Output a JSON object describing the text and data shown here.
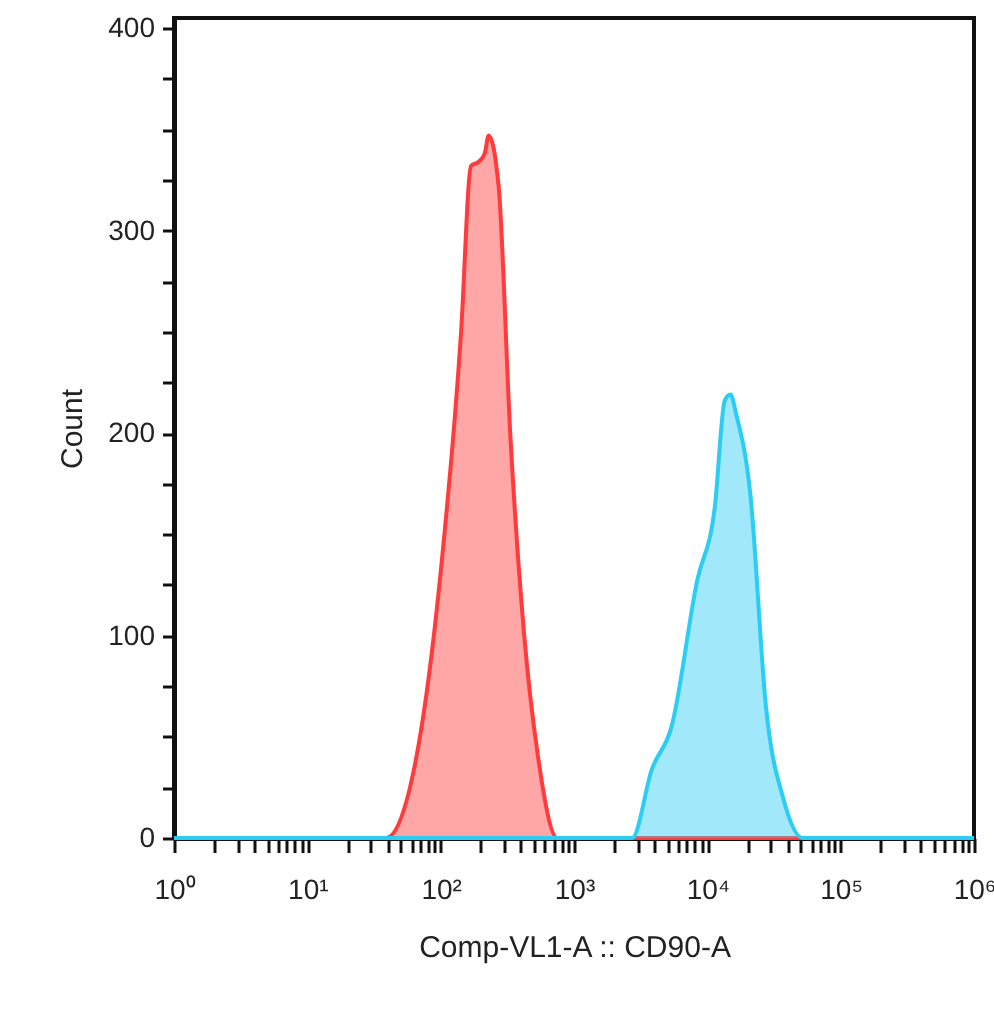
{
  "chart_data": {
    "type": "area",
    "xlabel": "Comp-VL1-A :: CD90-A",
    "ylabel": "Count",
    "log": "x",
    "xlim": [
      1,
      1000000
    ],
    "ylim": [
      0,
      405
    ],
    "xticks": [
      {
        "value": 1,
        "label": "10⁰"
      },
      {
        "value": 2,
        "label": null
      },
      {
        "value": 3,
        "label": null
      },
      {
        "value": 4,
        "label": null
      },
      {
        "value": 5,
        "label": null
      },
      {
        "value": 6,
        "label": null
      },
      {
        "value": 7,
        "label": null
      },
      {
        "value": 8,
        "label": null
      },
      {
        "value": 9,
        "label": null
      },
      {
        "value": 10,
        "label": "10¹"
      },
      {
        "value": 20,
        "label": null
      },
      {
        "value": 30,
        "label": null
      },
      {
        "value": 40,
        "label": null
      },
      {
        "value": 50,
        "label": null
      },
      {
        "value": 60,
        "label": null
      },
      {
        "value": 70,
        "label": null
      },
      {
        "value": 80,
        "label": null
      },
      {
        "value": 90,
        "label": null
      },
      {
        "value": 100,
        "label": "10²"
      },
      {
        "value": 200,
        "label": null
      },
      {
        "value": 300,
        "label": null
      },
      {
        "value": 400,
        "label": null
      },
      {
        "value": 500,
        "label": null
      },
      {
        "value": 600,
        "label": null
      },
      {
        "value": 700,
        "label": null
      },
      {
        "value": 800,
        "label": null
      },
      {
        "value": 900,
        "label": null
      },
      {
        "value": 1000,
        "label": "10³"
      },
      {
        "value": 2000,
        "label": null
      },
      {
        "value": 3000,
        "label": null
      },
      {
        "value": 4000,
        "label": null
      },
      {
        "value": 5000,
        "label": null
      },
      {
        "value": 6000,
        "label": null
      },
      {
        "value": 7000,
        "label": null
      },
      {
        "value": 8000,
        "label": null
      },
      {
        "value": 9000,
        "label": null
      },
      {
        "value": 10000,
        "label": "10⁴"
      },
      {
        "value": 20000,
        "label": null
      },
      {
        "value": 30000,
        "label": null
      },
      {
        "value": 40000,
        "label": null
      },
      {
        "value": 50000,
        "label": null
      },
      {
        "value": 60000,
        "label": null
      },
      {
        "value": 70000,
        "label": null
      },
      {
        "value": 80000,
        "label": null
      },
      {
        "value": 90000,
        "label": null
      },
      {
        "value": 100000,
        "label": "10⁵"
      },
      {
        "value": 200000,
        "label": null
      },
      {
        "value": 300000,
        "label": null
      },
      {
        "value": 400000,
        "label": null
      },
      {
        "value": 500000,
        "label": null
      },
      {
        "value": 600000,
        "label": null
      },
      {
        "value": 700000,
        "label": null
      },
      {
        "value": 800000,
        "label": null
      },
      {
        "value": 900000,
        "label": null
      },
      {
        "value": 1000000,
        "label": "10⁶"
      }
    ],
    "yticks": [
      0,
      {
        "value": 25,
        "label": null
      },
      {
        "value": 50,
        "label": null
      },
      {
        "value": 75,
        "label": null
      },
      100,
      {
        "value": 125,
        "label": null
      },
      {
        "value": 150,
        "label": null
      },
      {
        "value": 175,
        "label": null
      },
      200,
      {
        "value": 225,
        "label": null
      },
      {
        "value": 250,
        "label": null
      },
      {
        "value": 275,
        "label": null
      },
      300,
      {
        "value": 325,
        "label": null
      },
      {
        "value": 350,
        "label": null
      },
      {
        "value": 375,
        "label": null
      },
      400
    ],
    "grid": false,
    "marker": "none",
    "series": [
      {
        "color": "#ff3b3b",
        "x": [
          1,
          39,
          72,
          101,
          142,
          169,
          193,
          214,
          229,
          272,
          333,
          422,
          535,
          750,
          1000000
        ],
        "values": [
          0,
          0,
          55,
          134,
          249,
          332,
          334,
          338,
          347,
          322,
          199,
          101,
          41,
          0,
          0
        ]
      },
      {
        "color": "#2ccdf5",
        "x": [
          1,
          2730,
          3840,
          5390,
          8380,
          11400,
          13500,
          14900,
          16500,
          21000,
          27500,
          37300,
          52000,
          1000000
        ],
        "values": [
          0,
          0,
          34,
          55,
          127,
          164,
          216,
          219,
          209,
          170,
          65,
          19,
          0,
          0
        ]
      }
    ]
  }
}
